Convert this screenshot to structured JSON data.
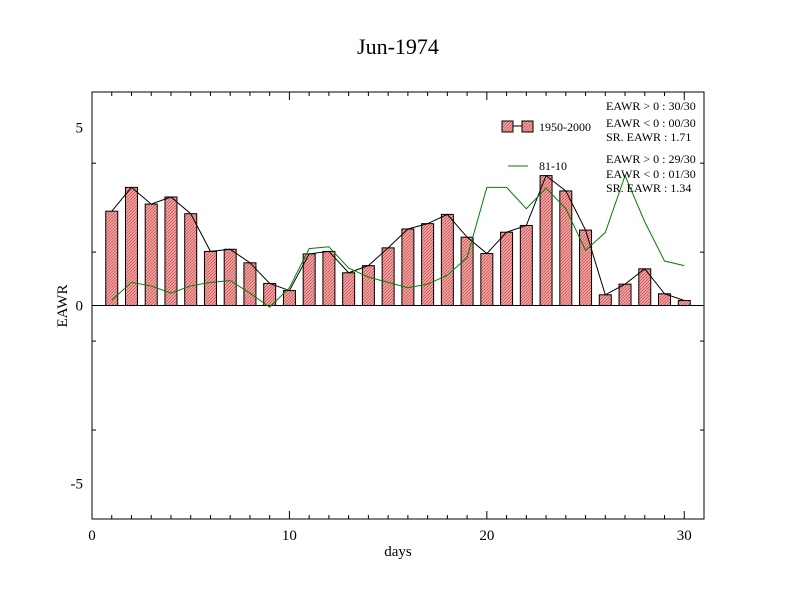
{
  "chart_data": {
    "type": "bar",
    "title": "Jun-1974",
    "xlabel": "days",
    "ylabel": "EAWR",
    "xlim": [
      0,
      31
    ],
    "ylim": [
      -6,
      6
    ],
    "x_ticks": [
      0,
      10,
      20,
      30
    ],
    "y_ticks": [
      -5,
      0,
      5
    ],
    "grid": false,
    "legend_position": "top-right",
    "colors": {
      "bar_fill": "#f08080",
      "bar_stroke": "#000000",
      "line_1950": "#000000",
      "line_8110": "#008000"
    },
    "x": [
      1,
      2,
      3,
      4,
      5,
      6,
      7,
      8,
      9,
      10,
      11,
      12,
      13,
      14,
      15,
      16,
      17,
      18,
      19,
      20,
      21,
      22,
      23,
      24,
      25,
      26,
      27,
      28,
      29,
      30
    ],
    "series": [
      {
        "name": "1950-2000",
        "type": "bar+line",
        "values": [
          2.65,
          3.32,
          2.85,
          3.05,
          2.58,
          1.52,
          1.58,
          1.2,
          0.62,
          0.42,
          1.45,
          1.52,
          0.92,
          1.12,
          1.62,
          2.15,
          2.3,
          2.56,
          1.92,
          1.46,
          2.06,
          2.25,
          3.65,
          3.22,
          2.12,
          0.3,
          0.6,
          1.03,
          0.33,
          0.14
        ]
      },
      {
        "name": "81-10",
        "type": "line",
        "values": [
          0.15,
          0.65,
          0.55,
          0.35,
          0.55,
          0.65,
          0.7,
          0.35,
          -0.05,
          0.5,
          1.6,
          1.65,
          1.05,
          0.8,
          0.65,
          0.5,
          0.6,
          0.85,
          1.35,
          3.32,
          3.32,
          2.72,
          3.3,
          2.72,
          1.55,
          2.05,
          3.65,
          2.35,
          1.25,
          1.12
        ]
      }
    ],
    "stats": {
      "s1950": {
        "line1": "EAWR > 0 : 30/30",
        "line2": "EAWR < 0 : 00/30",
        "line3": "SR. EAWR :  1.71"
      },
      "s8110": {
        "line1": "EAWR > 0 : 29/30",
        "line2": "EAWR < 0 : 01/30",
        "line3": "SR. EAWR :  1.34"
      }
    }
  }
}
